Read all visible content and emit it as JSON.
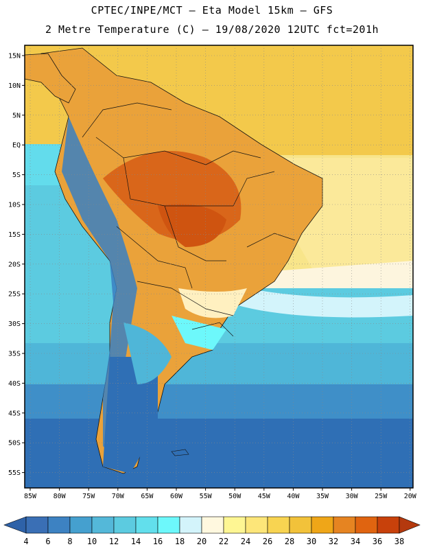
{
  "header": {
    "line1": "CPTEC/INPE/MCT –  Eta Model 15km – GFS",
    "line2": "2 Metre Temperature (C) – 19/08/2020 12UTC fct=201h"
  },
  "map": {
    "lat_labels": [
      "15N",
      "10N",
      "5N",
      "EQ",
      "5S",
      "10S",
      "15S",
      "20S",
      "25S",
      "30S",
      "35S",
      "40S",
      "45S",
      "50S",
      "55S"
    ],
    "lon_labels": [
      "85W",
      "80W",
      "75W",
      "70W",
      "65W",
      "60W",
      "55W",
      "50W",
      "45W",
      "40W",
      "35W",
      "30W",
      "25W",
      "20W"
    ],
    "gridlines": "dotted",
    "colors": {
      "ocean_tropical": "#f3c94b",
      "ocean_subtropical": "#f8e58a",
      "ocean_cool": "#5ccbe0",
      "ocean_cold": "#2f7bbf",
      "land_hot": "#d9661a",
      "land_warm": "#eaa23a",
      "andes_cold": "#3a80c2"
    }
  },
  "colorbar": {
    "labels": [
      "4",
      "6",
      "8",
      "10",
      "12",
      "14",
      "16",
      "18",
      "20",
      "22",
      "24",
      "26",
      "28",
      "30",
      "32",
      "34",
      "36",
      "38"
    ],
    "colors": [
      "#3a6fb5",
      "#3d82c2",
      "#45a0cf",
      "#54b8d9",
      "#5ccbe0",
      "#62dfec",
      "#6df8fb",
      "#d3f4fb",
      "#fff8df",
      "#fef693",
      "#fde679",
      "#f8d451",
      "#f2c23a",
      "#efa618",
      "#e68421",
      "#e06410",
      "#c8410b"
    ],
    "arrow_left_color": "#2e62a8",
    "arrow_right_color": "#b4390e"
  }
}
